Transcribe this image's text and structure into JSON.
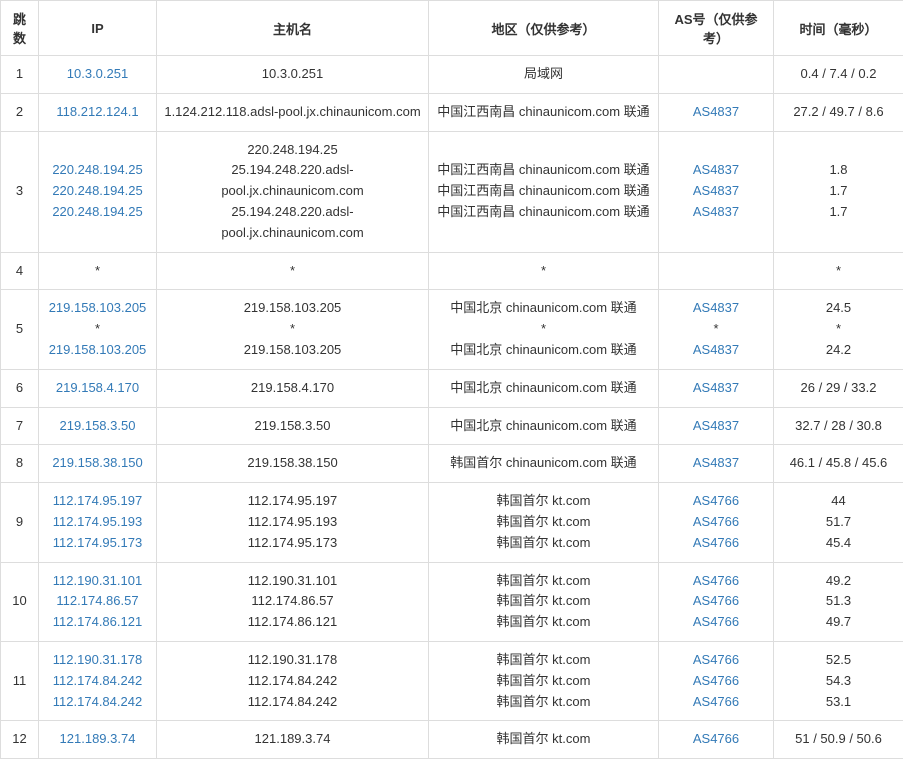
{
  "headers": {
    "hop": "跳数",
    "ip": "IP",
    "host": "主机名",
    "region": "地区（仅供参考）",
    "asn": "AS号（仅供参考）",
    "time": "时间（毫秒）"
  },
  "rows": [
    {
      "hop": "1",
      "ip": [
        "10.3.0.251"
      ],
      "host": [
        "10.3.0.251"
      ],
      "region": [
        "局域网"
      ],
      "asn": [
        ""
      ],
      "time": [
        "0.4 / 7.4 / 0.2"
      ]
    },
    {
      "hop": "2",
      "ip": [
        "118.212.124.1"
      ],
      "host": [
        "1.124.212.118.adsl-pool.jx.chinaunicom.com"
      ],
      "region": [
        "中国江西南昌 chinaunicom.com 联通"
      ],
      "asn": [
        "AS4837"
      ],
      "time": [
        "27.2 / 49.7 / 8.6"
      ]
    },
    {
      "hop": "3",
      "ip": [
        "220.248.194.25",
        "220.248.194.25",
        "220.248.194.25"
      ],
      "host": [
        "220.248.194.25",
        "25.194.248.220.adsl-pool.jx.chinaunicom.com",
        "25.194.248.220.adsl-pool.jx.chinaunicom.com"
      ],
      "region": [
        "中国江西南昌 chinaunicom.com 联通",
        "中国江西南昌 chinaunicom.com 联通",
        "中国江西南昌 chinaunicom.com 联通"
      ],
      "asn": [
        "AS4837",
        "AS4837",
        "AS4837"
      ],
      "time": [
        "1.8",
        "1.7",
        "1.7"
      ]
    },
    {
      "hop": "4",
      "ip": [
        "*"
      ],
      "host": [
        "*"
      ],
      "region": [
        "*"
      ],
      "asn": [
        ""
      ],
      "time": [
        "*"
      ]
    },
    {
      "hop": "5",
      "ip": [
        "219.158.103.205",
        "*",
        "219.158.103.205"
      ],
      "host": [
        "219.158.103.205",
        "*",
        "219.158.103.205"
      ],
      "region": [
        "中国北京 chinaunicom.com 联通",
        "*",
        "中国北京 chinaunicom.com 联通"
      ],
      "asn": [
        "AS4837",
        "*",
        "AS4837"
      ],
      "time": [
        "24.5",
        "*",
        "24.2"
      ]
    },
    {
      "hop": "6",
      "ip": [
        "219.158.4.170"
      ],
      "host": [
        "219.158.4.170"
      ],
      "region": [
        "中国北京 chinaunicom.com 联通"
      ],
      "asn": [
        "AS4837"
      ],
      "time": [
        "26 / 29 / 33.2"
      ]
    },
    {
      "hop": "7",
      "ip": [
        "219.158.3.50"
      ],
      "host": [
        "219.158.3.50"
      ],
      "region": [
        "中国北京 chinaunicom.com 联通"
      ],
      "asn": [
        "AS4837"
      ],
      "time": [
        "32.7 / 28 / 30.8"
      ]
    },
    {
      "hop": "8",
      "ip": [
        "219.158.38.150"
      ],
      "host": [
        "219.158.38.150"
      ],
      "region": [
        "韩国首尔 chinaunicom.com 联通"
      ],
      "asn": [
        "AS4837"
      ],
      "time": [
        "46.1 / 45.8 / 45.6"
      ]
    },
    {
      "hop": "9",
      "ip": [
        "112.174.95.197",
        "112.174.95.193",
        "112.174.95.173"
      ],
      "host": [
        "112.174.95.197",
        "112.174.95.193",
        "112.174.95.173"
      ],
      "region": [
        "韩国首尔 kt.com",
        "韩国首尔 kt.com",
        "韩国首尔 kt.com"
      ],
      "asn": [
        "AS4766",
        "AS4766",
        "AS4766"
      ],
      "time": [
        "44",
        "51.7",
        "45.4"
      ]
    },
    {
      "hop": "10",
      "ip": [
        "112.190.31.101",
        "112.174.86.57",
        "112.174.86.121"
      ],
      "host": [
        "112.190.31.101",
        "112.174.86.57",
        "112.174.86.121"
      ],
      "region": [
        "韩国首尔 kt.com",
        "韩国首尔 kt.com",
        "韩国首尔 kt.com"
      ],
      "asn": [
        "AS4766",
        "AS4766",
        "AS4766"
      ],
      "time": [
        "49.2",
        "51.3",
        "49.7"
      ]
    },
    {
      "hop": "11",
      "ip": [
        "112.190.31.178",
        "112.174.84.242",
        "112.174.84.242"
      ],
      "host": [
        "112.190.31.178",
        "112.174.84.242",
        "112.174.84.242"
      ],
      "region": [
        "韩国首尔 kt.com",
        "韩国首尔 kt.com",
        "韩国首尔 kt.com"
      ],
      "asn": [
        "AS4766",
        "AS4766",
        "AS4766"
      ],
      "time": [
        "52.5",
        "54.3",
        "53.1"
      ]
    },
    {
      "hop": "12",
      "ip": [
        "121.189.3.74"
      ],
      "host": [
        "121.189.3.74"
      ],
      "region": [
        "韩国首尔 kt.com"
      ],
      "asn": [
        "AS4766"
      ],
      "time": [
        "51 / 50.9 / 50.6"
      ]
    }
  ],
  "link_cols": [
    "ip",
    "asn"
  ],
  "star_plain": true
}
